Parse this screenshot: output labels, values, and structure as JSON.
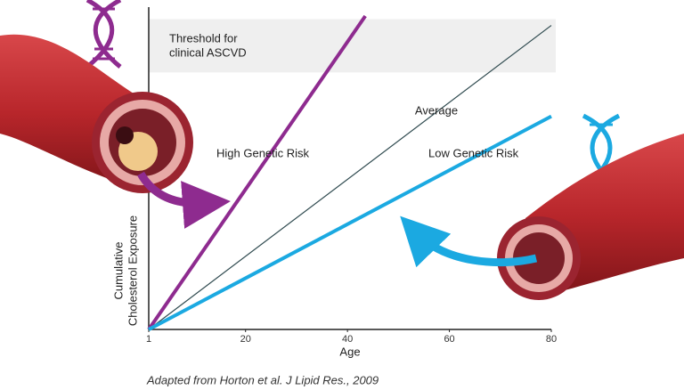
{
  "chart_data": {
    "type": "line",
    "xlabel": "Age",
    "ylabel": [
      "Cumulative",
      "Cholesterol Exposure"
    ],
    "threshold_label": [
      "Threshold for",
      "clinical ASCVD"
    ],
    "threshold_band": [
      82,
      99
    ],
    "caption": "Adapted from Horton et al. J Lipid Res., 2009",
    "xlim": [
      1,
      80
    ],
    "xticks": [
      1,
      20,
      40,
      60,
      80
    ],
    "ylim": [
      0,
      100
    ],
    "series": [
      {
        "name": "High Genetic Risk",
        "color": "#8e2b8f",
        "x": [
          1,
          43.5
        ],
        "values": [
          0,
          100
        ]
      },
      {
        "name": "Average",
        "color": "#2f4a4f",
        "x": [
          1,
          80
        ],
        "values": [
          0,
          97
        ]
      },
      {
        "name": "Low Genetic Risk",
        "color": "#1ba9e1",
        "x": [
          1,
          80
        ],
        "values": [
          0,
          68
        ]
      }
    ]
  }
}
